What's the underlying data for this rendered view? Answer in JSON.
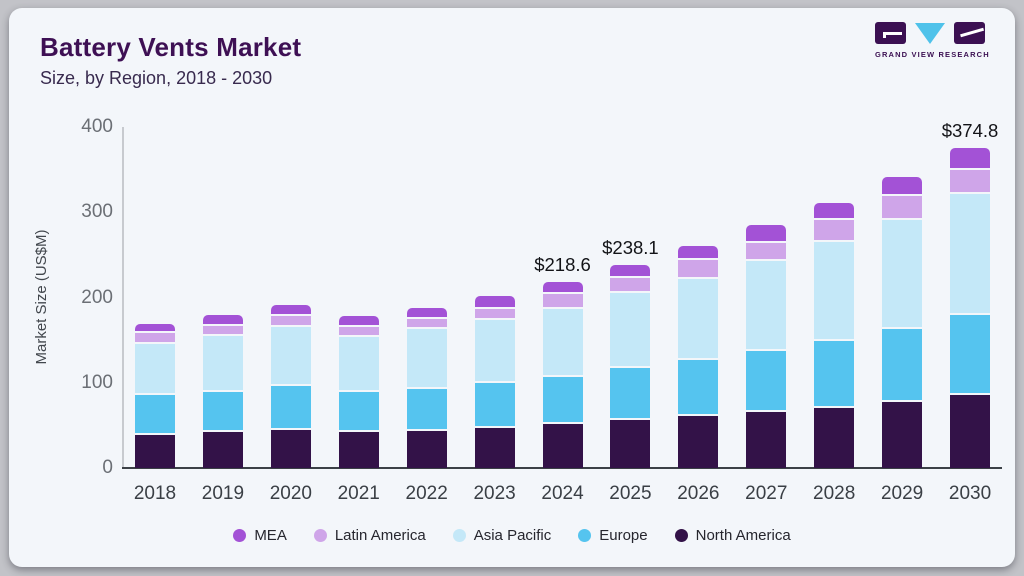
{
  "logo": {
    "brand": "GRAND VIEW RESEARCH"
  },
  "chart_data": {
    "type": "bar",
    "stacked": true,
    "title": "Battery Vents Market",
    "subtitle": "Size, by Region, 2018 - 2030",
    "ylabel": "Market Size (US$M)",
    "ylim": [
      0,
      400
    ],
    "yticks": [
      "0",
      "100",
      "200",
      "300",
      "400"
    ],
    "grid": false,
    "legend_position": "bottom",
    "categories": [
      "2018",
      "2019",
      "2020",
      "2021",
      "2022",
      "2023",
      "2024",
      "2025",
      "2026",
      "2027",
      "2028",
      "2029",
      "2030"
    ],
    "series": [
      {
        "name": "North America",
        "color": "#331248",
        "values": [
          41.0,
          44.0,
          47.0,
          44.0,
          45.5,
          49.0,
          54.5,
          58.6,
          63.7,
          68.4,
          73.0,
          79.4,
          88.0
        ]
      },
      {
        "name": "Europe",
        "color": "#55c4ef",
        "values": [
          47.0,
          48.0,
          51.0,
          47.0,
          49.0,
          52.5,
          55.0,
          60.7,
          65.3,
          71.5,
          78.2,
          85.9,
          93.8
        ]
      },
      {
        "name": "Asia Pacific",
        "color": "#c4e8f8",
        "values": [
          60.0,
          65.5,
          70.0,
          65.5,
          70.5,
          74.5,
          79.5,
          87.9,
          94.6,
          105.5,
          116.5,
          127.8,
          141.6
        ]
      },
      {
        "name": "Latin America",
        "color": "#cfa5e9",
        "values": [
          12.5,
          11.5,
          13.0,
          11.5,
          12.0,
          12.5,
          17.8,
          17.7,
          22.6,
          21.1,
          25.4,
          28.1,
          28.4
        ]
      },
      {
        "name": "MEA",
        "color": "#a352d6",
        "values": [
          8.5,
          10.5,
          10.5,
          10.0,
          11.0,
          13.5,
          11.8,
          13.2,
          13.7,
          18.0,
          17.6,
          19.9,
          23.0
        ]
      }
    ],
    "totals_shown": [
      {
        "category": "2024",
        "text": "$218.6"
      },
      {
        "category": "2025",
        "text": "$238.1"
      },
      {
        "category": "2030",
        "text": "$374.8"
      }
    ],
    "legend_order": [
      "MEA",
      "Latin America",
      "Asia Pacific",
      "Europe",
      "North America"
    ]
  }
}
